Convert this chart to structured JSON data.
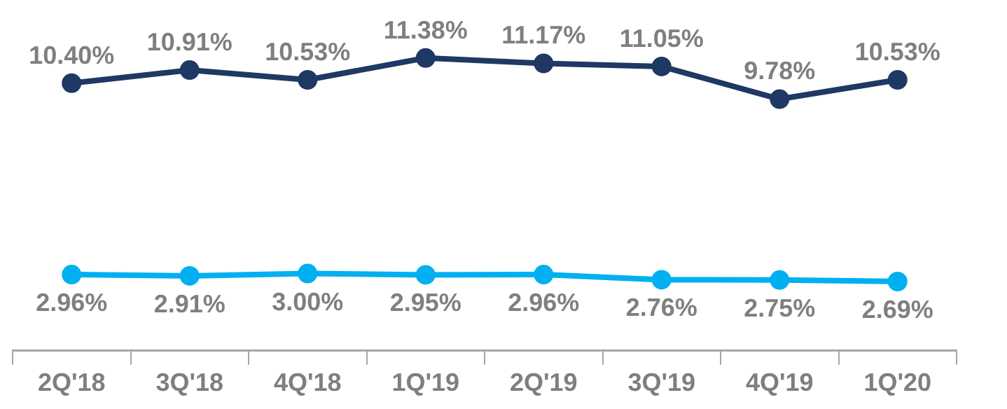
{
  "chart_data": {
    "type": "line",
    "categories": [
      "2Q'18",
      "3Q'18",
      "4Q'18",
      "1Q'19",
      "2Q'19",
      "3Q'19",
      "4Q'19",
      "1Q'20"
    ],
    "series": [
      {
        "color": "#1f3864",
        "values": [
          10.4,
          10.91,
          10.53,
          11.38,
          11.17,
          11.05,
          9.78,
          10.53
        ],
        "value_labels": [
          "10.40%",
          "10.91%",
          "10.53%",
          "11.38%",
          "11.17%",
          "11.05%",
          "9.78%",
          "10.53%"
        ]
      },
      {
        "color": "#00b0f0",
        "values": [
          2.96,
          2.91,
          3.0,
          2.95,
          2.96,
          2.76,
          2.75,
          2.69
        ],
        "value_labels": [
          "2.96%",
          "2.91%",
          "3.00%",
          "2.95%",
          "2.96%",
          "2.76%",
          "2.75%",
          "2.69%"
        ]
      }
    ],
    "marker": "circle",
    "line_style": "solid",
    "grid": false,
    "legend": false,
    "tick_labels": "x"
  }
}
